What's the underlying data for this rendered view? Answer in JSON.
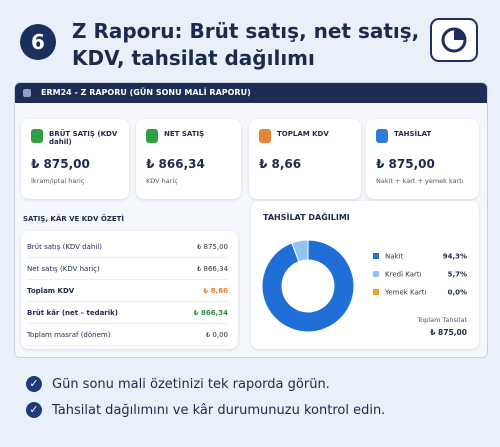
{
  "header": {
    "step": "6",
    "title_line1": "Z Raporu: Brüt satış, net satış,",
    "title_line2": "KDV, tahsilat dağılımı"
  },
  "window": {
    "title": "ERM24 - Z RAPORU (GÜN SONU MALİ RAPORU)"
  },
  "cards": [
    {
      "label": "BRÜT SATIŞ (KDV dahil)",
      "value": "₺ 875,00",
      "note": "İkram/iptal hariç",
      "color": "#2f9e44"
    },
    {
      "label": "NET SATIŞ",
      "value": "₺ 866,34",
      "note": "KDV hariç",
      "color": "#2f9e44"
    },
    {
      "label": "TOPLAM KDV",
      "value": "₺ 8,66",
      "color": "#e8833a"
    },
    {
      "label": "TAHSİLAT",
      "value": "₺ 875,00",
      "note": "Nakit + kart + yemek kartı",
      "color": "#2f7be0"
    }
  ],
  "summary": {
    "title": "SATIŞ, KÂR VE KDV ÖZETİ",
    "rows": [
      [
        "Brüt satış (KDV dahil)",
        "₺ 875,00"
      ],
      [
        "Net satış (KDV hariç)",
        "₺ 866,34"
      ],
      [
        "Toplam KDV",
        "₺ 8,66"
      ],
      [
        "Brüt kâr (net – tedarik)",
        "₺ 866,34"
      ],
      [
        "Toplam masraf (dönem)",
        "₺ 0,00"
      ]
    ]
  },
  "collection": {
    "title": "TAHSİLAT DAĞILIMI",
    "items": [
      {
        "label": "Nakit",
        "value": 94.3,
        "value_label": "94,3%",
        "color": "#1f6fd6"
      },
      {
        "label": "Kredi Kartı",
        "value": 5.7,
        "value_label": "5,7%",
        "color": "#8fc3f0"
      },
      {
        "label": "Yemek Kartı",
        "value": 0.0,
        "value_label": "0,0%",
        "color": "#f0a030"
      }
    ],
    "total_label": "Toplam Tahsilat",
    "total": "₺ 875,00"
  },
  "bullets": [
    "Gün sonu mali özetinizi tek raporda görün.",
    "Tahsilat dağılımını ve kâr durumunuzu kontrol edin."
  ]
}
